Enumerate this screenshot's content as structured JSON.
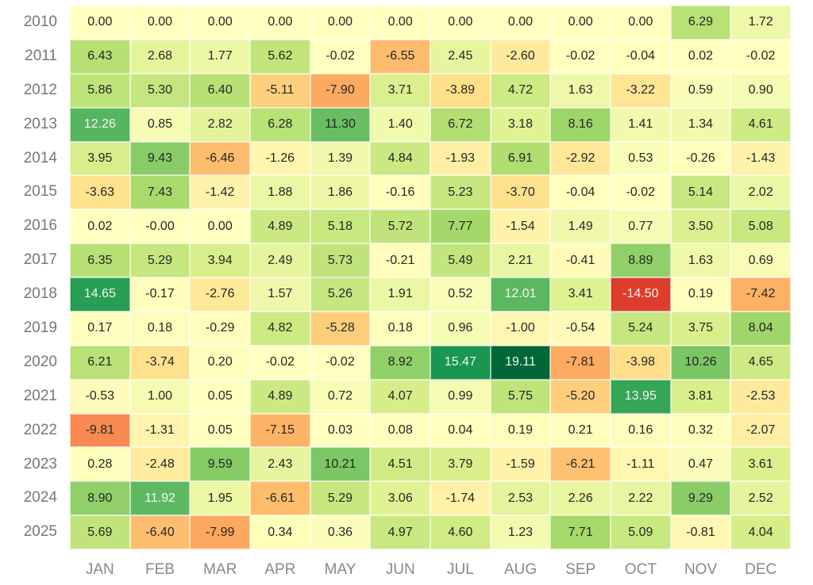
{
  "chart_data": {
    "type": "heatmap",
    "title": "",
    "xlabel": "",
    "ylabel": "",
    "colormap": "RdYlGn",
    "color_center": 0,
    "color_range": [
      -19.11,
      19.11
    ],
    "value_format": "2 decimals",
    "x": [
      "JAN",
      "FEB",
      "MAR",
      "APR",
      "MAY",
      "JUN",
      "JUL",
      "AUG",
      "SEP",
      "OCT",
      "NOV",
      "DEC"
    ],
    "y": [
      "2010",
      "2011",
      "2012",
      "2013",
      "2014",
      "2015",
      "2016",
      "2017",
      "2018",
      "2019",
      "2020",
      "2021",
      "2022",
      "2023",
      "2024",
      "2025"
    ],
    "values": [
      [
        "0.00",
        "0.00",
        "0.00",
        "0.00",
        "0.00",
        "0.00",
        "0.00",
        "0.00",
        "0.00",
        "0.00",
        "6.29",
        "1.72"
      ],
      [
        "6.43",
        "2.68",
        "1.77",
        "5.62",
        "-0.02",
        "-6.55",
        "2.45",
        "-2.60",
        "-0.02",
        "-0.04",
        "0.02",
        "-0.02"
      ],
      [
        "5.86",
        "5.30",
        "6.40",
        "-5.11",
        "-7.90",
        "3.71",
        "-3.89",
        "4.72",
        "1.63",
        "-3.22",
        "0.59",
        "0.90"
      ],
      [
        "12.26",
        "0.85",
        "2.82",
        "6.28",
        "11.30",
        "1.40",
        "6.72",
        "3.18",
        "8.16",
        "1.41",
        "1.34",
        "4.61"
      ],
      [
        "3.95",
        "9.43",
        "-6.46",
        "-1.26",
        "1.39",
        "4.84",
        "-1.93",
        "6.91",
        "-2.92",
        "0.53",
        "-0.26",
        "-1.43"
      ],
      [
        "-3.63",
        "7.43",
        "-1.42",
        "1.88",
        "1.86",
        "-0.16",
        "5.23",
        "-3.70",
        "-0.04",
        "-0.02",
        "5.14",
        "2.02"
      ],
      [
        "0.02",
        "-0.00",
        "0.00",
        "4.89",
        "5.18",
        "5.72",
        "7.77",
        "-1.54",
        "1.49",
        "0.77",
        "3.50",
        "5.08"
      ],
      [
        "6.35",
        "5.29",
        "3.94",
        "2.49",
        "5.73",
        "-0.21",
        "5.49",
        "2.21",
        "-0.41",
        "8.89",
        "1.63",
        "0.69"
      ],
      [
        "14.65",
        "-0.17",
        "-2.76",
        "1.57",
        "5.26",
        "1.91",
        "0.52",
        "12.01",
        "3.41",
        "-14.50",
        "0.19",
        "-7.42"
      ],
      [
        "0.17",
        "0.18",
        "-0.29",
        "4.82",
        "-5.28",
        "0.18",
        "0.96",
        "-1.00",
        "-0.54",
        "5.24",
        "3.75",
        "8.04"
      ],
      [
        "6.21",
        "-3.74",
        "0.20",
        "-0.02",
        "-0.02",
        "8.92",
        "15.47",
        "19.11",
        "-7.81",
        "-3.98",
        "10.26",
        "4.65"
      ],
      [
        "-0.53",
        "1.00",
        "0.05",
        "4.89",
        "0.72",
        "4.07",
        "0.99",
        "5.75",
        "-5.20",
        "13.95",
        "3.81",
        "-2.53"
      ],
      [
        "-9.81",
        "-1.31",
        "0.05",
        "-7.15",
        "0.03",
        "0.08",
        "0.04",
        "0.19",
        "0.21",
        "0.16",
        "0.32",
        "-2.07"
      ],
      [
        "0.28",
        "-2.48",
        "9.59",
        "2.43",
        "10.21",
        "4.51",
        "3.79",
        "-1.59",
        "-6.21",
        "-1.11",
        "0.47",
        "3.61"
      ],
      [
        "8.90",
        "11.92",
        "1.95",
        "-6.61",
        "5.29",
        "3.06",
        "-1.74",
        "2.53",
        "2.26",
        "2.22",
        "9.29",
        "2.52"
      ],
      [
        "5.69",
        "-6.40",
        "-7.99",
        "0.34",
        "0.36",
        "4.97",
        "4.60",
        "1.23",
        "7.71",
        "5.09",
        "-0.81",
        "4.04"
      ]
    ],
    "grid": false,
    "legend": "none"
  }
}
